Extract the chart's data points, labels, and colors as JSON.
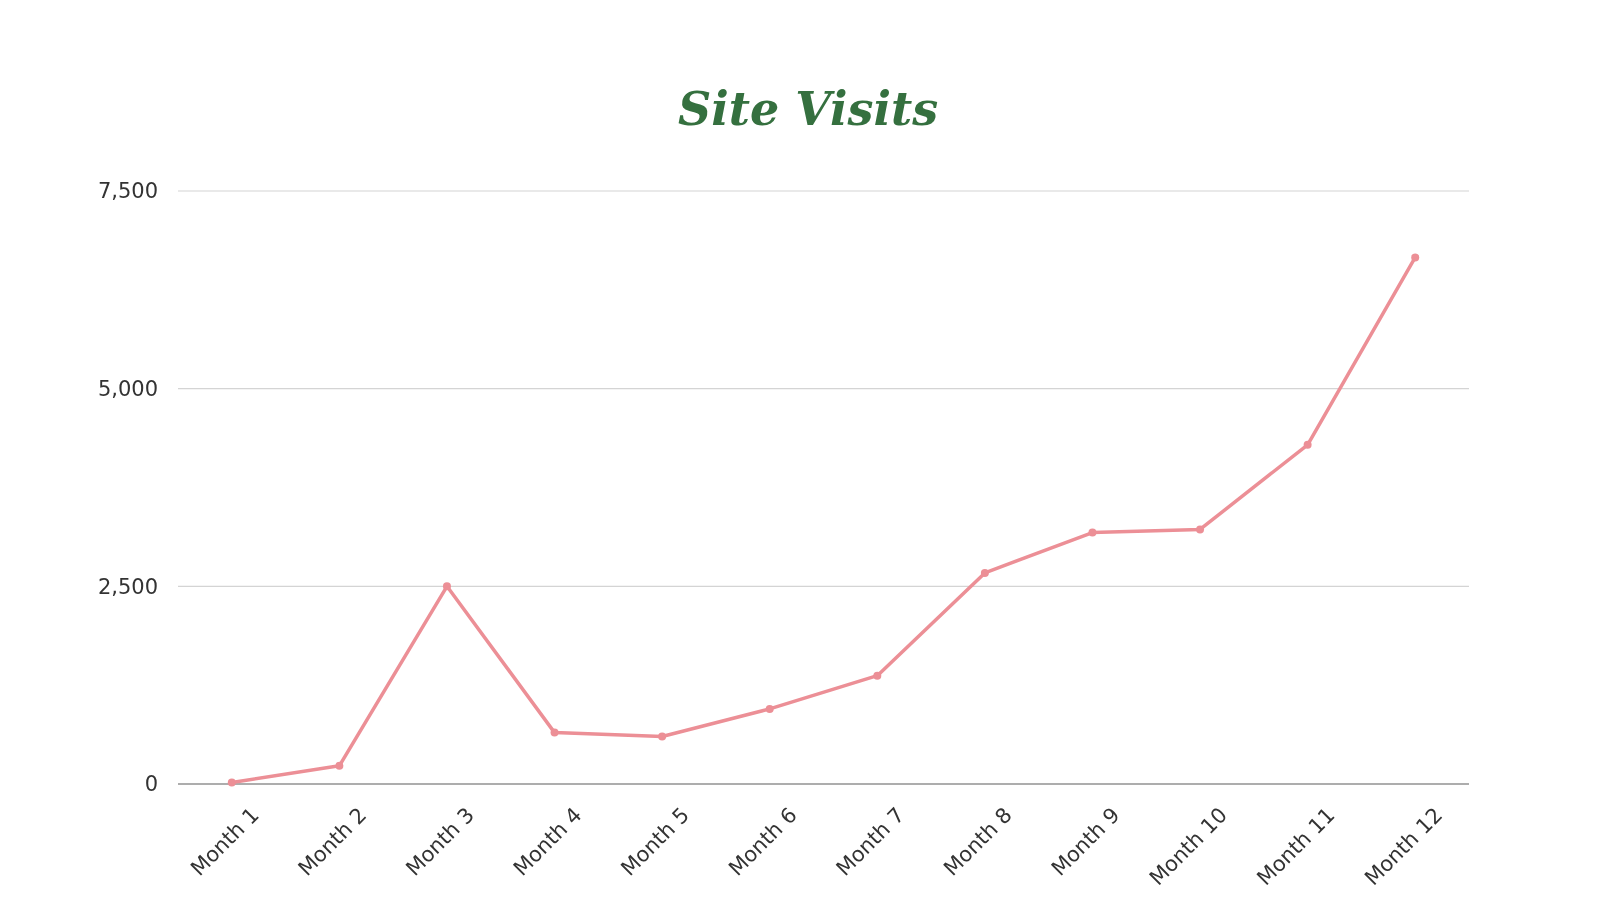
{
  "chart_data": {
    "type": "line",
    "title": "Site Visits",
    "categories": [
      "Month 1",
      "Month 2",
      "Month 3",
      "Month 4",
      "Month 5",
      "Month 6",
      "Month 7",
      "Month 8",
      "Month 9",
      "Month 10",
      "Month 11",
      "Month 12"
    ],
    "series": [
      {
        "color": "#ec8f96",
        "values": [
          20,
          230,
          2500,
          650,
          600,
          950,
          1370,
          2670,
          3180,
          3220,
          4290,
          6660
        ]
      }
    ],
    "ylim": [
      0,
      7500
    ],
    "yticks": [
      0,
      {
        "value": 2500,
        "label": "2,500"
      },
      {
        "value": 5000,
        "label": "5,000"
      },
      {
        "value": 7500,
        "label": "7,500"
      }
    ],
    "grid": "y",
    "marker": "circle",
    "line_style": "solid"
  }
}
